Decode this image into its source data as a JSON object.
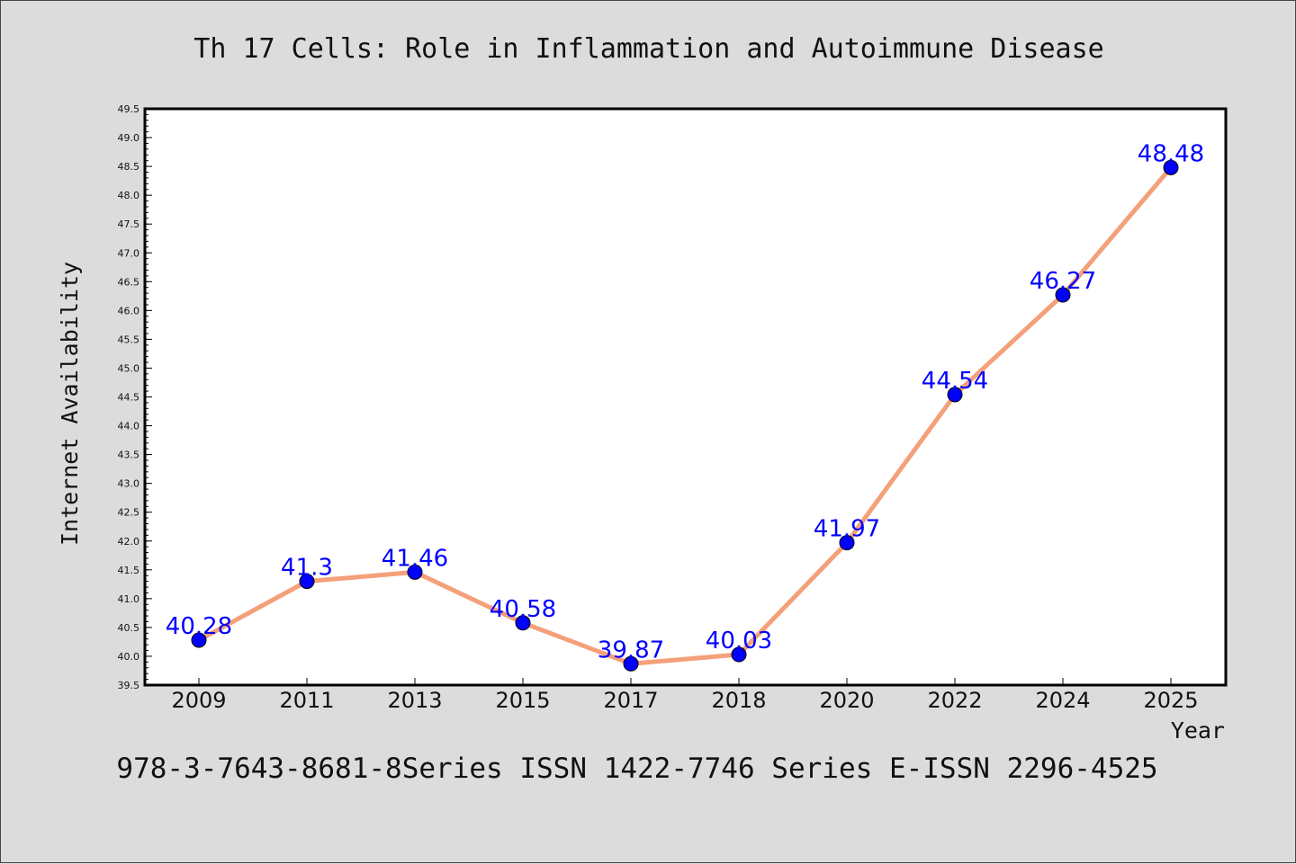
{
  "chart_data": {
    "type": "line",
    "title": "Th 17 Cells: Role in Inflammation and Autoimmune Disease",
    "xlabel": "Year",
    "ylabel": "Internet Availability",
    "footer": "978-3-7643-8681-8Series ISSN 1422-7746 Series E-ISSN 2296-4525",
    "categories": [
      "2009",
      "2011",
      "2013",
      "2015",
      "2017",
      "2018",
      "2020",
      "2022",
      "2024",
      "2025"
    ],
    "series": [
      {
        "values": [
          40.28,
          41.3,
          41.46,
          40.58,
          39.87,
          40.03,
          41.97,
          44.54,
          46.27,
          48.48
        ]
      }
    ],
    "data_labels": [
      "40.28",
      "41.3",
      "41.46",
      "40.58",
      "39.87",
      "40.03",
      "41.97",
      "44.54",
      "46.27",
      "48.48"
    ],
    "ylim": [
      39.5,
      49.5
    ],
    "yticks": [
      "39.5",
      "40.0",
      "40.5",
      "41.0",
      "41.5",
      "42.0",
      "42.5",
      "43.0",
      "43.5",
      "44.0",
      "44.5",
      "45.0",
      "45.5",
      "46.0",
      "46.5",
      "47.0",
      "47.5",
      "48.0",
      "48.5",
      "49.0",
      "49.5"
    ],
    "line_color": "#f4a07a",
    "marker_color": "#0000ff",
    "label_color": "#0000ff",
    "grid": false,
    "legend": "none"
  }
}
